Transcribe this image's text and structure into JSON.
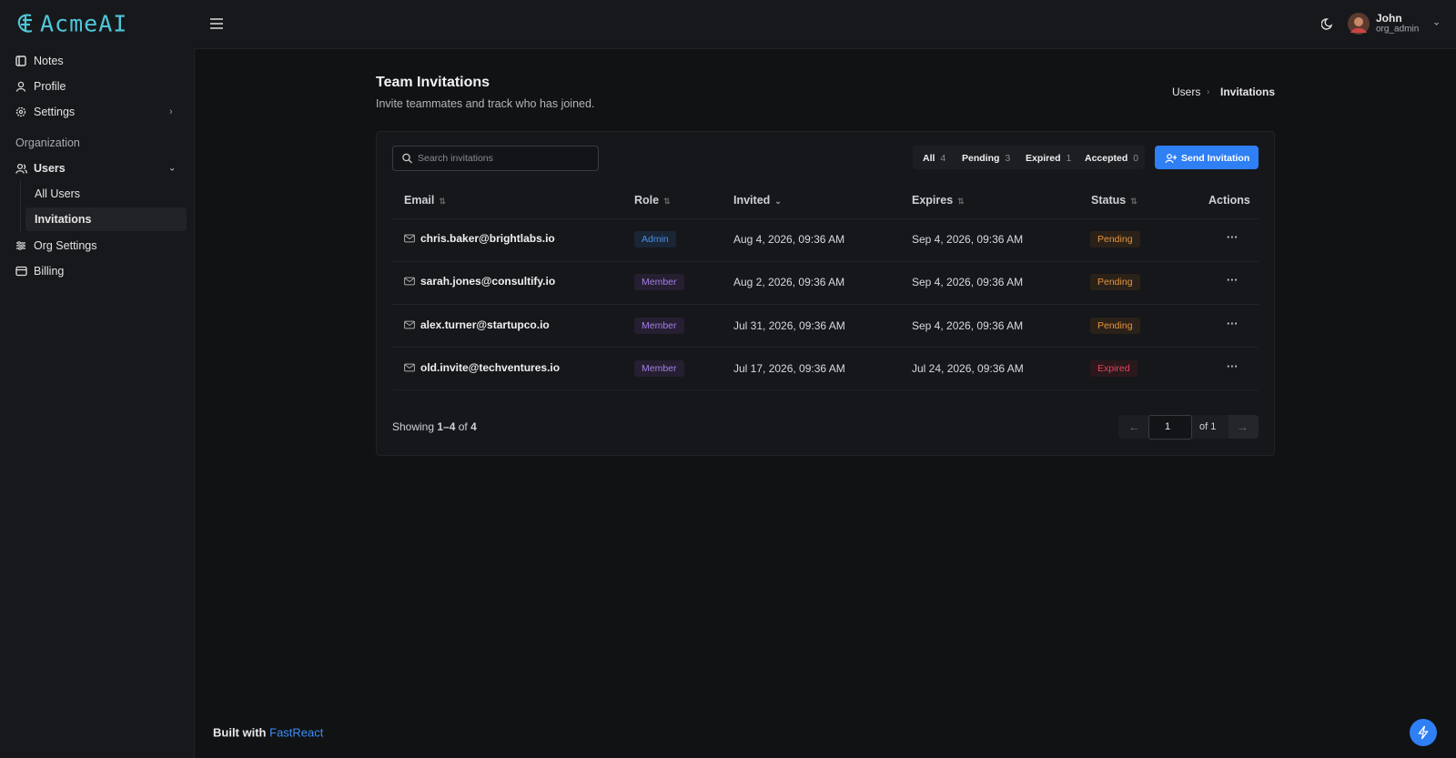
{
  "brand": "AcmeAI",
  "sidebar": {
    "items": [
      "Notes",
      "Profile",
      "Settings"
    ],
    "section": "Organization",
    "users": "Users",
    "users_sub": [
      "All Users",
      "Invitations"
    ],
    "more": [
      "Org Settings",
      "Billing"
    ]
  },
  "topbar": {
    "user_name": "John",
    "user_role": "org_admin"
  },
  "header": {
    "title": "Team Invitations",
    "subtitle": "Invite teammates and track who has joined.",
    "breadcrumb": [
      "Users",
      "Invitations"
    ]
  },
  "toolbar": {
    "search_placeholder": "Search invitations",
    "filters": [
      {
        "label": "All",
        "count": 4
      },
      {
        "label": "Pending",
        "count": 3
      },
      {
        "label": "Expired",
        "count": 1
      },
      {
        "label": "Accepted",
        "count": 0
      }
    ],
    "button": "Send Invitation"
  },
  "table": {
    "headers": [
      "Email",
      "Role",
      "Invited",
      "Expires",
      "Status",
      "Actions"
    ],
    "rows": [
      [
        "chris.baker@brightlabs.io",
        "Admin",
        "Aug 4, 2026, 09:36 AM",
        "Sep 4, 2026, 09:36 AM",
        "Pending"
      ],
      [
        "sarah.jones@consultify.io",
        "Member",
        "Aug 2, 2026, 09:36 AM",
        "Sep 4, 2026, 09:36 AM",
        "Pending"
      ],
      [
        "alex.turner@startupco.io",
        "Member",
        "Jul 31, 2026, 09:36 AM",
        "Sep 4, 2026, 09:36 AM",
        "Pending"
      ],
      [
        "old.invite@techventures.io",
        "Member",
        "Jul 17, 2026, 09:36 AM",
        "Jul 24, 2026, 09:36 AM",
        "Expired"
      ]
    ]
  },
  "pagination": {
    "showing": "Showing",
    "range": "1–4",
    "of": "of",
    "total": 4,
    "page": 1,
    "page_of": "of 1"
  },
  "footer": {
    "built_with": "Built with",
    "link": "FastReact"
  }
}
